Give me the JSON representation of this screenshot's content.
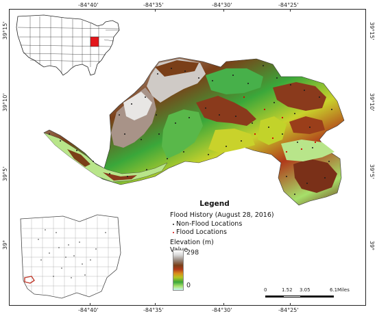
{
  "graticule": {
    "top": [
      "-84°40'",
      "-84°35'",
      "-84°30'",
      "-84°25'"
    ],
    "bottom": [
      "-84°40'",
      "-84°35'",
      "-84°30'",
      "-84°25'"
    ],
    "left": [
      "39°15'",
      "39°10'",
      "39°5'",
      "39°"
    ],
    "right": [
      "39°15'",
      "39°10'",
      "39°5'",
      "39°"
    ]
  },
  "legend": {
    "title": "Legend",
    "flood_history": "Flood History (August 28, 2016)",
    "non_flood": "Non-Flood Locations",
    "flood": "Flood Locations",
    "elevation": "Elevation (m)",
    "value": "Value",
    "max": "298",
    "min": "0"
  },
  "scale": {
    "ticks": [
      "0",
      "1.52",
      "3.05",
      "6.1"
    ],
    "unit": "Miles"
  },
  "colors": {
    "highlight_state": "#e3161b",
    "county_outline": "#555555",
    "study_area": "#c0392b",
    "non_flood_point": "#1a1a1a",
    "flood_point": "#d40000"
  },
  "insets": {
    "usa_map": "United States outline map with Ohio highlighted",
    "ohio_map": "Ohio county map with study area highlighted"
  }
}
